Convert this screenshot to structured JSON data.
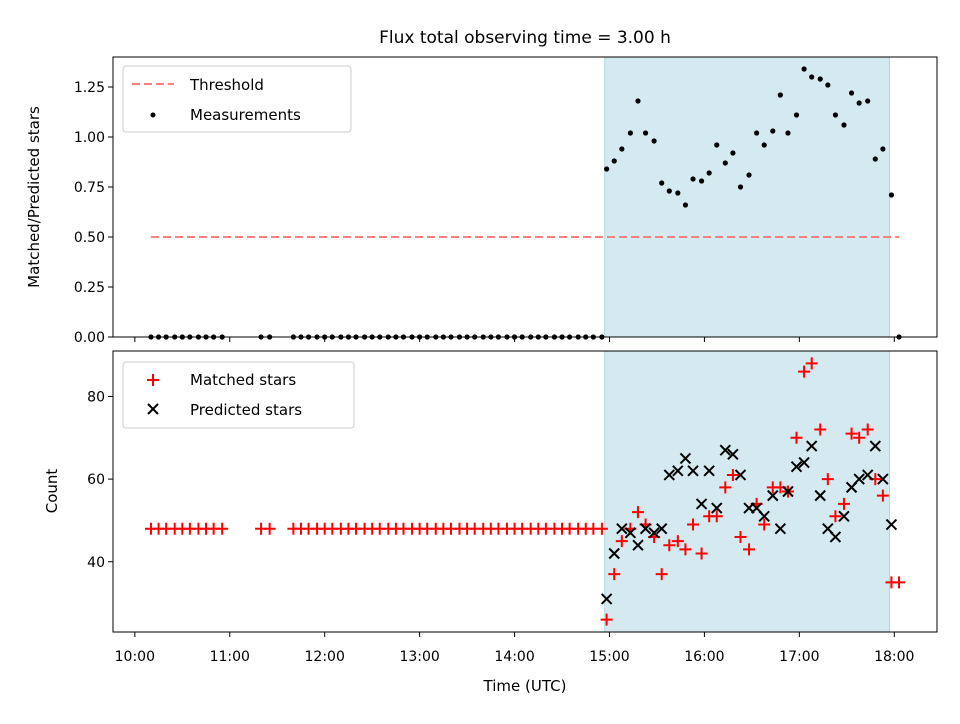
{
  "chart_data": {
    "type": "scatter",
    "title": "Flux total observing time = 3.00 h",
    "xlabel": "Time (UTC)",
    "x_ticks": [
      "10:00",
      "11:00",
      "12:00",
      "13:00",
      "14:00",
      "15:00",
      "16:00",
      "17:00",
      "18:00"
    ],
    "xlim_hours": [
      9.77,
      18.45
    ],
    "highlight_span_hours": [
      14.95,
      17.95
    ],
    "shading_color": "#d4eaf0",
    "panels": [
      {
        "ylabel": "Matched/Predicted stars",
        "ylim": [
          0,
          1.4
        ],
        "y_ticks": [
          "0.00",
          "0.25",
          "0.50",
          "0.75",
          "1.00",
          "1.25"
        ],
        "legend_position": "top-left",
        "series": [
          {
            "name": "Threshold",
            "kind": "dashed-line",
            "color": "#ff7f7f",
            "x": [
              10.17,
              18.05
            ],
            "y": [
              0.5,
              0.5
            ]
          },
          {
            "name": "Measurements",
            "kind": "dot",
            "color": "#000000",
            "x": [
              10.17,
              10.25,
              10.33,
              10.42,
              10.5,
              10.58,
              10.67,
              10.75,
              10.83,
              10.92,
              11.33,
              11.42,
              11.67,
              11.75,
              11.83,
              11.92,
              12.0,
              12.08,
              12.17,
              12.25,
              12.33,
              12.42,
              12.5,
              12.58,
              12.67,
              12.75,
              12.83,
              12.92,
              13.0,
              13.08,
              13.17,
              13.25,
              13.33,
              13.42,
              13.5,
              13.58,
              13.67,
              13.75,
              13.83,
              13.92,
              14.0,
              14.08,
              14.17,
              14.25,
              14.33,
              14.42,
              14.5,
              14.58,
              14.67,
              14.75,
              14.83,
              14.92,
              14.97,
              15.05,
              15.13,
              15.22,
              15.3,
              15.38,
              15.47,
              15.55,
              15.63,
              15.72,
              15.8,
              15.88,
              15.97,
              16.05,
              16.13,
              16.22,
              16.3,
              16.38,
              16.47,
              16.55,
              16.63,
              16.72,
              16.8,
              16.88,
              16.97,
              17.05,
              17.13,
              17.22,
              17.3,
              17.38,
              17.47,
              17.55,
              17.63,
              17.72,
              17.8,
              17.88,
              17.97,
              18.05
            ],
            "y": [
              0,
              0,
              0,
              0,
              0,
              0,
              0,
              0,
              0,
              0,
              0,
              0,
              0,
              0,
              0,
              0,
              0,
              0,
              0,
              0,
              0,
              0,
              0,
              0,
              0,
              0,
              0,
              0,
              0,
              0,
              0,
              0,
              0,
              0,
              0,
              0,
              0,
              0,
              0,
              0,
              0,
              0,
              0,
              0,
              0,
              0,
              0,
              0,
              0,
              0,
              0,
              0,
              0.84,
              0.88,
              0.94,
              1.02,
              1.18,
              1.02,
              0.98,
              0.77,
              0.73,
              0.72,
              0.66,
              0.79,
              0.78,
              0.82,
              0.96,
              0.87,
              0.92,
              0.75,
              0.81,
              1.02,
              0.96,
              1.03,
              1.21,
              1.02,
              1.11,
              1.34,
              1.3,
              1.29,
              1.26,
              1.11,
              1.06,
              1.22,
              1.17,
              1.18,
              0.89,
              0.94,
              0.71,
              0.0
            ]
          }
        ]
      },
      {
        "ylabel": "Count",
        "ylim": [
          23,
          91
        ],
        "y_ticks": [
          "40",
          "60",
          "80"
        ],
        "legend_position": "top-left",
        "series": [
          {
            "name": "Matched stars",
            "kind": "plus",
            "color": "#ff0000",
            "x": [
              10.17,
              10.25,
              10.33,
              10.42,
              10.5,
              10.58,
              10.67,
              10.75,
              10.83,
              10.92,
              11.33,
              11.42,
              11.67,
              11.75,
              11.83,
              11.92,
              12.0,
              12.08,
              12.17,
              12.25,
              12.33,
              12.42,
              12.5,
              12.58,
              12.67,
              12.75,
              12.83,
              12.92,
              13.0,
              13.08,
              13.17,
              13.25,
              13.33,
              13.42,
              13.5,
              13.58,
              13.67,
              13.75,
              13.83,
              13.92,
              14.0,
              14.08,
              14.17,
              14.25,
              14.33,
              14.42,
              14.5,
              14.58,
              14.67,
              14.75,
              14.83,
              14.92,
              14.97,
              15.05,
              15.13,
              15.22,
              15.3,
              15.38,
              15.47,
              15.55,
              15.63,
              15.72,
              15.8,
              15.88,
              15.97,
              16.05,
              16.13,
              16.22,
              16.3,
              16.38,
              16.47,
              16.55,
              16.63,
              16.72,
              16.8,
              16.88,
              16.97,
              17.05,
              17.13,
              17.22,
              17.3,
              17.38,
              17.47,
              17.55,
              17.63,
              17.72,
              17.8,
              17.88,
              17.97,
              18.05
            ],
            "y": [
              48,
              48,
              48,
              48,
              48,
              48,
              48,
              48,
              48,
              48,
              48,
              48,
              48,
              48,
              48,
              48,
              48,
              48,
              48,
              48,
              48,
              48,
              48,
              48,
              48,
              48,
              48,
              48,
              48,
              48,
              48,
              48,
              48,
              48,
              48,
              48,
              48,
              48,
              48,
              48,
              48,
              48,
              48,
              48,
              48,
              48,
              48,
              48,
              48,
              48,
              48,
              48,
              26,
              37,
              45,
              48,
              52,
              49,
              46,
              37,
              44,
              45,
              43,
              49,
              42,
              51,
              51,
              58,
              61,
              46,
              43,
              54,
              49,
              58,
              58,
              57,
              70,
              86,
              88,
              72,
              60,
              51,
              54,
              71,
              70,
              72,
              60,
              56,
              35,
              35
            ]
          },
          {
            "name": "Predicted stars",
            "kind": "x",
            "color": "#000000",
            "x": [
              14.97,
              15.05,
              15.13,
              15.22,
              15.3,
              15.38,
              15.47,
              15.55,
              15.63,
              15.72,
              15.8,
              15.88,
              15.97,
              16.05,
              16.13,
              16.22,
              16.3,
              16.38,
              16.47,
              16.55,
              16.63,
              16.72,
              16.8,
              16.88,
              16.97,
              17.05,
              17.13,
              17.22,
              17.3,
              17.38,
              17.47,
              17.55,
              17.63,
              17.72,
              17.8,
              17.88,
              17.97
            ],
            "y": [
              31,
              42,
              48,
              47,
              44,
              48,
              47,
              48,
              61,
              62,
              65,
              62,
              54,
              62,
              53,
              67,
              66,
              61,
              53,
              53,
              51,
              56,
              48,
              57,
              63,
              64,
              68,
              56,
              48,
              46,
              51,
              58,
              60,
              61,
              68,
              60,
              49
            ]
          }
        ]
      }
    ]
  }
}
